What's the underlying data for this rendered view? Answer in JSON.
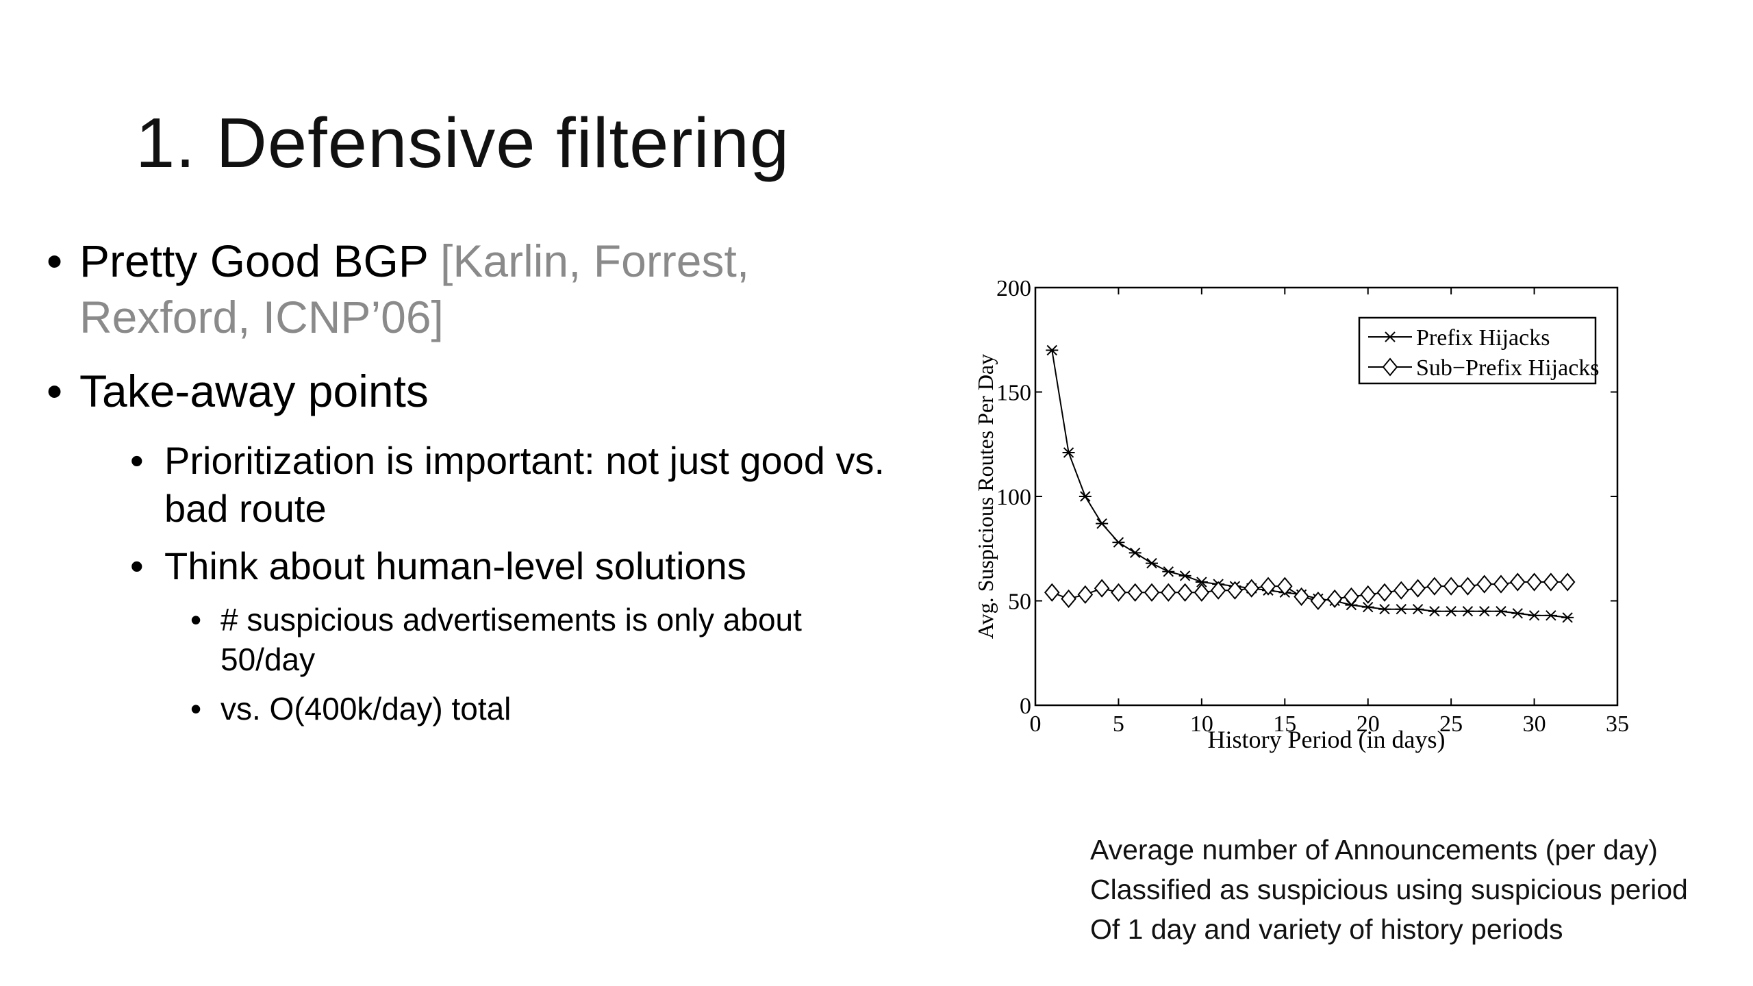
{
  "slide": {
    "title": "1. Defensive filtering",
    "bullets": {
      "pgbgp_main": "Pretty Good BGP ",
      "pgbgp_cite": "[Karlin, Forrest, Rexford, ICNP’06]",
      "takeaway": "Take-away points",
      "sub1": "Prioritization is important: not just good vs. bad route",
      "sub2": "Think about human-level solutions",
      "subsub1": "# suspicious advertisements is only about 50/day",
      "subsub2": "vs. O(400k/day) total"
    },
    "caption": {
      "line1": "Average number of Announcements (per day)",
      "line2": "Classified as suspicious using suspicious period",
      "line3": "Of 1 day and variety of history periods"
    }
  },
  "chart_data": {
    "type": "line",
    "xlabel": "History Period (in days)",
    "ylabel": "Avg. Suspicious Routes Per Day",
    "xlim": [
      0,
      35
    ],
    "ylim": [
      0,
      200
    ],
    "xticks": [
      0,
      5,
      10,
      15,
      20,
      25,
      30,
      35
    ],
    "yticks": [
      0,
      50,
      100,
      150,
      200
    ],
    "legend_position": "top-right",
    "grid": false,
    "series": [
      {
        "name": "Prefix Hijacks",
        "marker": "x",
        "x": [
          1,
          2,
          3,
          4,
          5,
          6,
          7,
          8,
          9,
          10,
          11,
          12,
          13,
          14,
          15,
          16,
          17,
          18,
          19,
          20,
          21,
          22,
          23,
          24,
          25,
          26,
          27,
          28,
          29,
          30,
          31,
          32
        ],
        "values": [
          170,
          121,
          100,
          87,
          78,
          73,
          68,
          64,
          62,
          59,
          58,
          57,
          56,
          55,
          54,
          53,
          51,
          50,
          48,
          47,
          46,
          46,
          46,
          45,
          45,
          45,
          45,
          45,
          44,
          43,
          43,
          42
        ]
      },
      {
        "name": "Sub−Prefix Hijacks",
        "marker": "diamond",
        "x": [
          1,
          2,
          3,
          4,
          5,
          6,
          7,
          8,
          9,
          10,
          11,
          12,
          13,
          14,
          15,
          16,
          17,
          18,
          19,
          20,
          21,
          22,
          23,
          24,
          25,
          26,
          27,
          28,
          29,
          30,
          31,
          32
        ],
        "values": [
          54,
          51,
          53,
          56,
          54,
          54,
          54,
          54,
          54,
          54,
          55,
          55,
          56,
          57,
          57,
          52,
          50,
          51,
          52,
          53,
          54,
          55,
          56,
          57,
          57,
          57,
          58,
          58,
          59,
          59,
          59,
          59
        ]
      }
    ]
  }
}
